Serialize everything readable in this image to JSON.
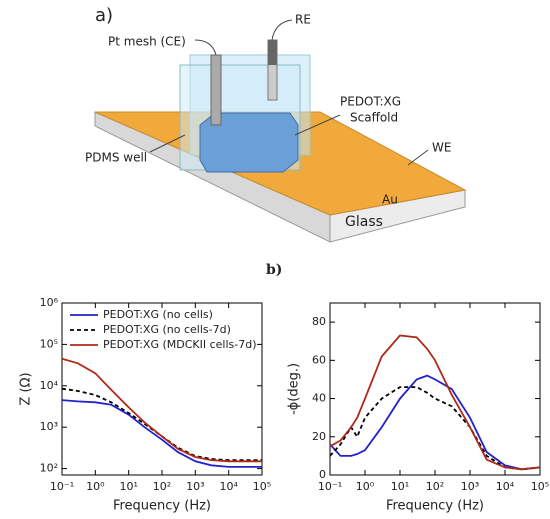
{
  "panel_a": "a)",
  "panel_b": "b)",
  "diagram": {
    "ce": "Pt mesh (CE)",
    "re": "RE",
    "scaffold": [
      "PEDOT:XG",
      "Scaffold"
    ],
    "well": "PDMS well",
    "we": "WE",
    "au": "Au",
    "glass": "Glass"
  },
  "chart_data": [
    {
      "type": "line",
      "xlabel": "Frequency (Hz)",
      "ylabel": "Z (Ω)",
      "xscale": "log",
      "yscale": "log",
      "legend": "upper left",
      "x": [
        0.1,
        0.3,
        1,
        3,
        10,
        30,
        100,
        300,
        1000,
        3000,
        10000,
        30000,
        100000
      ],
      "xlim": [
        0.1,
        100000
      ],
      "xticks": [
        {
          "value": 0.1,
          "label": "10⁻¹"
        },
        {
          "value": 1,
          "label": "10⁰"
        },
        {
          "value": 10,
          "label": "10¹"
        },
        {
          "value": 100,
          "label": "10²"
        },
        {
          "value": 1000,
          "label": "10³"
        },
        {
          "value": 10000,
          "label": "10⁴"
        },
        {
          "value": 100000,
          "label": "10⁵"
        }
      ],
      "ylim": [
        70,
        1000000
      ],
      "yticks": [
        {
          "value": 100,
          "label": "10²"
        },
        {
          "value": 1000,
          "label": "10³"
        },
        {
          "value": 10000,
          "label": "10⁴"
        },
        {
          "value": 100000,
          "label": "10⁵"
        },
        {
          "value": 1000000,
          "label": "10⁶"
        }
      ],
      "series": [
        {
          "name": "PEDOT:XG (no cells)",
          "color": "#2323c8",
          "style": "solid",
          "values": [
            4500,
            4200,
            4000,
            3500,
            2000,
            1000,
            500,
            250,
            150,
            120,
            110,
            110,
            110
          ]
        },
        {
          "name": "PEDOT:XG (no cells-7d)",
          "color": "#000000",
          "style": "dashed",
          "values": [
            8500,
            7500,
            6000,
            4000,
            2200,
            1200,
            600,
            320,
            200,
            170,
            160,
            160,
            160
          ]
        },
        {
          "name": "PEDOT:XG (MDCKII cells-7d)",
          "color": "#b02a18",
          "style": "solid",
          "values": [
            45000,
            35000,
            20000,
            8000,
            3000,
            1300,
            600,
            300,
            190,
            160,
            150,
            150,
            150
          ]
        }
      ]
    },
    {
      "type": "line",
      "xlabel": "Frequency (Hz)",
      "ylabel": "-ϕ(deg.)",
      "xscale": "log",
      "yscale": "linear",
      "x": [
        0.1,
        0.2,
        0.4,
        0.6,
        1,
        3,
        10,
        30,
        60,
        100,
        300,
        1000,
        3000,
        10000,
        30000,
        100000
      ],
      "xlim": [
        0.1,
        100000
      ],
      "xticks": [
        {
          "value": 0.1,
          "label": "10⁻¹"
        },
        {
          "value": 1,
          "label": "10⁰"
        },
        {
          "value": 10,
          "label": "10¹"
        },
        {
          "value": 100,
          "label": "10²"
        },
        {
          "value": 1000,
          "label": "10³"
        },
        {
          "value": 10000,
          "label": "10⁴"
        },
        {
          "value": 100000,
          "label": "10⁵"
        }
      ],
      "ylim": [
        0,
        90
      ],
      "yticks": [
        0,
        20,
        40,
        60,
        80
      ],
      "series": [
        {
          "color": "#2323c8",
          "style": "solid",
          "values": [
            16,
            10,
            10,
            11,
            13,
            25,
            40,
            50,
            52,
            50,
            45,
            30,
            12,
            5,
            3,
            4
          ]
        },
        {
          "color": "#000000",
          "style": "dashed",
          "values": [
            10,
            16,
            25,
            20,
            30,
            40,
            46,
            46,
            43,
            40,
            36,
            25,
            10,
            4,
            3,
            4
          ]
        },
        {
          "color": "#b02a18",
          "style": "solid",
          "values": [
            15,
            18,
            25,
            30,
            40,
            62,
            73,
            72,
            66,
            60,
            42,
            25,
            8,
            4,
            3,
            4
          ]
        }
      ]
    }
  ]
}
